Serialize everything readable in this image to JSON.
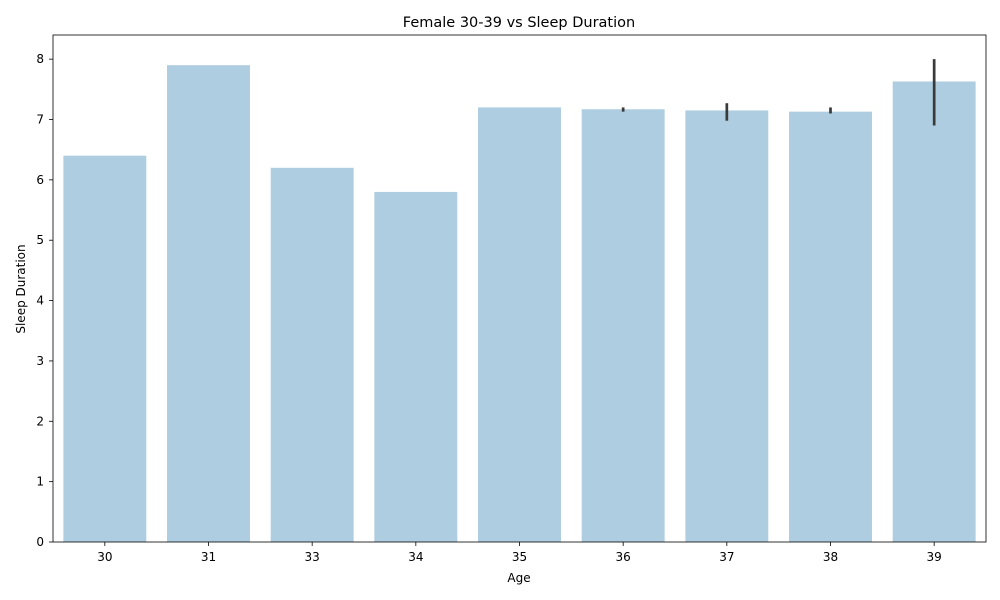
{
  "chart_data": {
    "type": "bar",
    "title": "Female 30-39 vs Sleep Duration",
    "xlabel": "Age",
    "ylabel": "Sleep Duration",
    "categories": [
      "30",
      "31",
      "33",
      "34",
      "35",
      "36",
      "37",
      "38",
      "39"
    ],
    "values": [
      6.4,
      7.9,
      6.2,
      5.8,
      7.2,
      7.17,
      7.15,
      7.13,
      7.63
    ],
    "error_bars": [
      null,
      null,
      null,
      null,
      null,
      [
        7.13,
        7.2
      ],
      [
        6.98,
        7.27
      ],
      [
        7.1,
        7.2
      ],
      [
        6.9,
        8.0
      ]
    ],
    "ylim": [
      0,
      8.4
    ],
    "yticks": [
      0,
      1,
      2,
      3,
      4,
      5,
      6,
      7,
      8
    ],
    "grid": false,
    "bar_color": "#aecde0",
    "errorbar_color": "#3a3a3a"
  }
}
